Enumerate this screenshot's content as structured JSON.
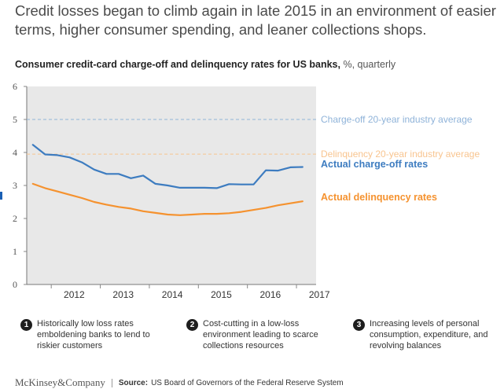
{
  "headline": "Credit losses began to climb again in late 2015 in an environment of easier terms, higher consumer spending, and leaner collections shops.",
  "subtitle": {
    "bold": "Consumer credit-card charge-off and delinquency rates for US banks,",
    "units": "%, quarterly"
  },
  "colors": {
    "chargeoff": "#3d7cc0",
    "delinquency": "#f5922f",
    "chargeoff_avg": "#8fb3d9",
    "delinquency_avg": "#f8c48f",
    "plot_bg": "#e8e8e8"
  },
  "chart_data": {
    "type": "line",
    "title": "Consumer credit-card charge-off and delinquency rates for US banks, %, quarterly",
    "ylim": [
      0,
      6
    ],
    "yticks": [
      "0",
      "1",
      "2",
      "3",
      "4",
      "5",
      "6"
    ],
    "xlim": [
      2011.5,
      2017.4
    ],
    "xticks": [
      "2012",
      "2013",
      "2014",
      "2015",
      "2016",
      "2017"
    ],
    "grid": false,
    "series": [
      {
        "name": "Actual charge-off rates",
        "color": "#3d7cc0",
        "x": [
          2011.625,
          2011.875,
          2012.125,
          2012.375,
          2012.625,
          2012.875,
          2013.125,
          2013.375,
          2013.625,
          2013.875,
          2014.125,
          2014.375,
          2014.625,
          2014.875,
          2015.125,
          2015.375,
          2015.625,
          2015.875,
          2016.125,
          2016.375,
          2016.625,
          2016.875,
          2017.125
        ],
        "y": [
          4.23,
          3.94,
          3.92,
          3.85,
          3.7,
          3.48,
          3.35,
          3.35,
          3.22,
          3.3,
          3.05,
          3.0,
          2.93,
          2.93,
          2.93,
          2.92,
          3.04,
          3.03,
          3.03,
          3.46,
          3.45,
          3.55,
          3.56
        ]
      },
      {
        "name": "Actual delinquency rates",
        "color": "#f5922f",
        "x": [
          2011.625,
          2011.875,
          2012.125,
          2012.375,
          2012.625,
          2012.875,
          2013.125,
          2013.375,
          2013.625,
          2013.875,
          2014.125,
          2014.375,
          2014.625,
          2014.875,
          2015.125,
          2015.375,
          2015.625,
          2015.875,
          2016.125,
          2016.375,
          2016.625,
          2016.875,
          2017.125
        ],
        "y": [
          3.05,
          2.92,
          2.82,
          2.72,
          2.62,
          2.5,
          2.42,
          2.35,
          2.3,
          2.22,
          2.17,
          2.12,
          2.1,
          2.12,
          2.14,
          2.14,
          2.16,
          2.2,
          2.26,
          2.32,
          2.4,
          2.46,
          2.52
        ]
      }
    ],
    "reference_lines": [
      {
        "name": "Charge-off 20-year industry average",
        "y": 5.0,
        "color": "#8fb3d9"
      },
      {
        "name": "Delinquency 20-year industry average",
        "y": 3.95,
        "color": "#f8c48f"
      }
    ]
  },
  "notes": [
    {
      "num": "1",
      "text": "Historically low loss rates emboldening banks to lend to riskier customers"
    },
    {
      "num": "2",
      "text": "Cost-cutting in a low-loss environment leading to scarce collections resources"
    },
    {
      "num": "3",
      "text": "Increasing levels of personal consumption, expenditure, and revolving balances"
    }
  ],
  "footer": {
    "brand": "McKinsey&Company",
    "source_label": "Source:",
    "source_text": "US Board of Governors of the Federal Reserve System"
  }
}
